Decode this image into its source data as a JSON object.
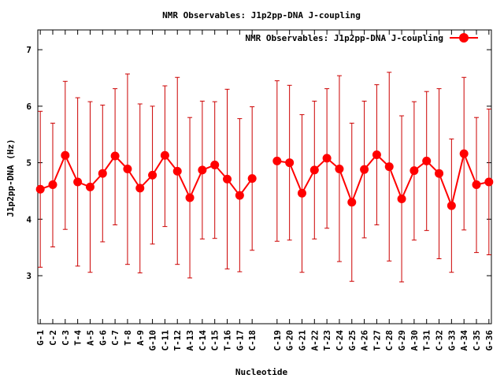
{
  "chart_data": {
    "type": "line",
    "title": "NMR Observables: J1p2pp-DNA J-coupling",
    "xlabel": "Nucleotide",
    "ylabel": "J1p2pp-DNA (Hz)",
    "ylim": [
      2.15,
      7.35
    ],
    "yticks": [
      3,
      4,
      5,
      6,
      7
    ],
    "grid": false,
    "legend_position": "top-right",
    "categories": [
      "G-1",
      "C-2",
      "C-3",
      "T-4",
      "A-5",
      "G-6",
      "C-7",
      "T-8",
      "A-9",
      "G-10",
      "C-11",
      "T-12",
      "A-13",
      "C-14",
      "C-15",
      "T-16",
      "G-17",
      "C-18",
      "C-19",
      "G-20",
      "G-21",
      "A-22",
      "T-23",
      "C-24",
      "G-25",
      "A-26",
      "T-27",
      "C-28",
      "G-29",
      "A-30",
      "T-31",
      "C-32",
      "G-33",
      "A-34",
      "C-35",
      "G-36"
    ],
    "x": [
      1,
      2,
      3,
      4,
      5,
      6,
      7,
      8,
      9,
      10,
      11,
      12,
      13,
      14,
      15,
      16,
      17,
      18,
      20,
      21,
      22,
      23,
      24,
      25,
      26,
      27,
      28,
      29,
      30,
      31,
      32,
      33,
      34,
      35,
      36,
      37
    ],
    "series": [
      {
        "name": "NMR Observables: J1p2pp-DNA J-coupling",
        "color": "#ff0000",
        "error_color": "#cc0000",
        "segments": [
          [
            0,
            17
          ],
          [
            18,
            35
          ]
        ],
        "values": [
          4.53,
          4.61,
          5.13,
          4.66,
          4.57,
          4.81,
          5.12,
          4.89,
          4.55,
          4.78,
          5.13,
          4.85,
          4.38,
          4.87,
          4.96,
          4.71,
          4.42,
          4.72,
          5.03,
          5.0,
          4.46,
          4.87,
          5.08,
          4.89,
          4.3,
          4.88,
          5.14,
          4.93,
          4.36,
          4.86,
          5.03,
          4.81,
          4.24,
          5.16,
          4.61,
          4.66
        ],
        "error_low": [
          3.15,
          3.51,
          3.82,
          3.17,
          3.06,
          3.6,
          3.9,
          3.2,
          3.05,
          3.56,
          3.87,
          3.2,
          2.96,
          3.65,
          3.66,
          3.12,
          3.07,
          3.45,
          3.61,
          3.63,
          3.06,
          3.65,
          3.84,
          3.25,
          2.9,
          3.67,
          3.9,
          3.26,
          2.89,
          3.63,
          3.8,
          3.3,
          3.06,
          3.81,
          3.41,
          3.37
        ],
        "error_high": [
          5.91,
          5.7,
          6.44,
          6.15,
          6.08,
          6.02,
          6.31,
          6.57,
          6.04,
          6.0,
          6.36,
          6.51,
          5.8,
          6.09,
          6.08,
          6.3,
          5.78,
          5.99,
          6.45,
          6.37,
          5.85,
          6.09,
          6.31,
          6.54,
          5.7,
          6.09,
          6.38,
          6.6,
          5.83,
          6.08,
          6.26,
          6.31,
          5.42,
          6.51,
          5.8,
          5.95
        ]
      }
    ]
  }
}
